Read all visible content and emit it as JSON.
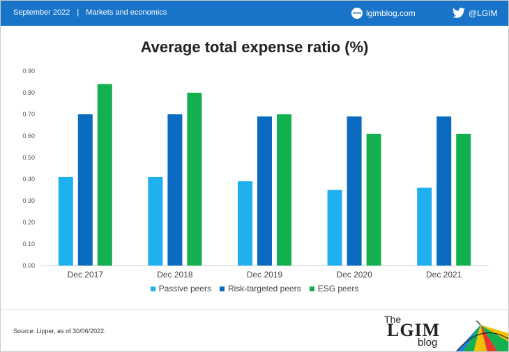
{
  "header": {
    "date": "September 2022",
    "separator": "|",
    "category": "Markets and economics",
    "site_icon_text": "www",
    "site": "lgimblog.com",
    "handle": "@LGIM",
    "icons": [
      "www-globe-icon",
      "twitter-bird-icon"
    ],
    "bar_color": "#1874c9"
  },
  "chart_data": {
    "type": "bar",
    "title": "Average total expense ratio (%)",
    "categories": [
      "Dec 2017",
      "Dec 2018",
      "Dec 2019",
      "Dec 2020",
      "Dec 2021"
    ],
    "series": [
      {
        "name": "Passive peers",
        "color": "#1fb0ef",
        "values": [
          0.41,
          0.41,
          0.39,
          0.35,
          0.36
        ]
      },
      {
        "name": "Risk-targeted peers",
        "color": "#0a6bc1",
        "values": [
          0.7,
          0.7,
          0.69,
          0.69,
          0.69
        ]
      },
      {
        "name": "ESG peers",
        "color": "#12b04f",
        "values": [
          0.84,
          0.8,
          0.7,
          0.61,
          0.61
        ]
      }
    ],
    "ylim": [
      0,
      0.9
    ],
    "yticks": [
      "0.00",
      "0.10",
      "0.20",
      "0.30",
      "0.40",
      "0.50",
      "0.60",
      "0.70",
      "0.80",
      "0.90"
    ],
    "xlabel": "",
    "ylabel": "",
    "grid": false,
    "legend_position": "bottom"
  },
  "footer": {
    "source": "Source: Lipper, as of 30/06/2022.",
    "logo_the": "The",
    "logo_name": "LGIM",
    "logo_blog": "blog"
  }
}
